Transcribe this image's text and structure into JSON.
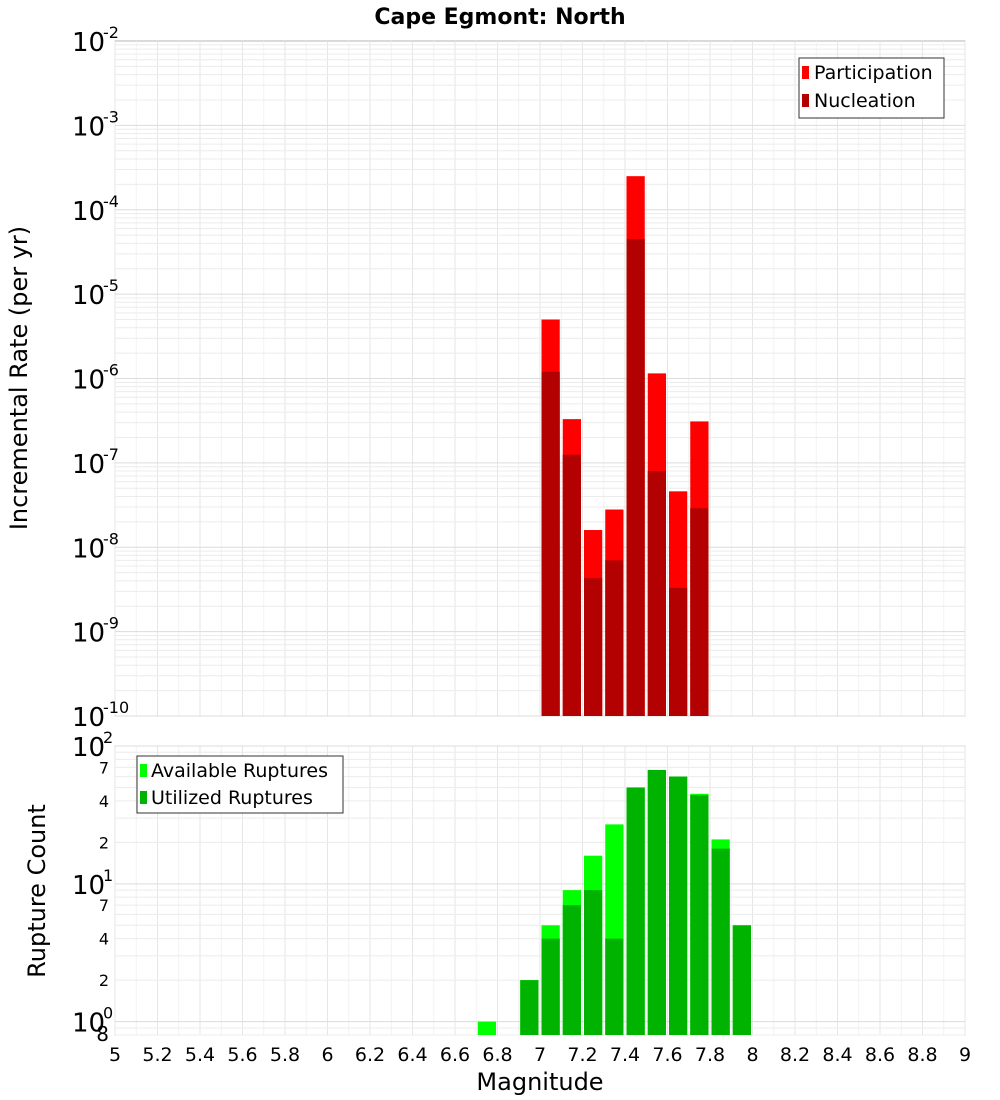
{
  "chart_data": [
    {
      "type": "bar",
      "title": "Cape Egmont: North",
      "xlabel": "",
      "ylabel": "Incremental Rate (per yr)",
      "yscale": "log",
      "ylim": [
        1e-10,
        0.01
      ],
      "xlim": [
        5,
        9
      ],
      "grid": true,
      "legend_position": "top-right",
      "y_tick_labels": [
        {
          "base": "10",
          "exp": "-10"
        },
        {
          "base": "10",
          "exp": "-9"
        },
        {
          "base": "10",
          "exp": "-8"
        },
        {
          "base": "10",
          "exp": "-7"
        },
        {
          "base": "10",
          "exp": "-6"
        },
        {
          "base": "10",
          "exp": "-5"
        },
        {
          "base": "10",
          "exp": "-4"
        },
        {
          "base": "10",
          "exp": "-3"
        },
        {
          "base": "10",
          "exp": "-2"
        }
      ],
      "x": [
        7.05,
        7.15,
        7.25,
        7.35,
        7.45,
        7.55,
        7.65,
        7.75
      ],
      "series": [
        {
          "name": "Participation",
          "color": "#ff0000",
          "values": [
            5e-06,
            3.3e-07,
            1.6e-08,
            2.8e-08,
            0.00025,
            1.15e-06,
            4.6e-08,
            3.1e-07
          ]
        },
        {
          "name": "Nucleation",
          "color": "#b30000",
          "values": [
            1.2e-06,
            1.25e-07,
            4.3e-09,
            7e-09,
            4.5e-05,
            8e-08,
            3.3e-09,
            2.9e-08
          ]
        }
      ]
    },
    {
      "type": "bar",
      "title": "",
      "xlabel": "Magnitude",
      "ylabel": "Rupture Count",
      "yscale": "log",
      "ylim": [
        0.8,
        100
      ],
      "xlim": [
        5,
        9
      ],
      "grid": true,
      "legend_position": "top-left",
      "y_major_labels": [
        {
          "base": "10",
          "exp": "0",
          "value": 1
        },
        {
          "base": "10",
          "exp": "1",
          "value": 10
        },
        {
          "base": "10",
          "exp": "2",
          "value": 100
        }
      ],
      "y_minor_labels": [
        "8",
        "2",
        "4",
        "7",
        "2",
        "4",
        "7"
      ],
      "x": [
        6.75,
        6.95,
        7.05,
        7.15,
        7.25,
        7.35,
        7.45,
        7.55,
        7.65,
        7.75,
        7.85,
        7.95
      ],
      "series": [
        {
          "name": "Available Ruptures",
          "color": "#00ff00",
          "values": [
            1,
            2,
            5,
            9,
            16,
            27,
            50,
            67,
            60,
            45,
            21,
            5
          ]
        },
        {
          "name": "Utilized Ruptures",
          "color": "#00b300",
          "values": [
            0,
            2,
            4,
            7,
            9,
            4,
            50,
            67,
            60,
            44,
            18,
            5
          ]
        }
      ],
      "x_tick_labels": [
        "5",
        "5.2",
        "5.4",
        "5.6",
        "5.8",
        "6",
        "6.2",
        "6.4",
        "6.6",
        "6.8",
        "7",
        "7.2",
        "7.4",
        "7.6",
        "7.8",
        "8",
        "8.2",
        "8.4",
        "8.6",
        "8.8",
        "9"
      ]
    }
  ]
}
